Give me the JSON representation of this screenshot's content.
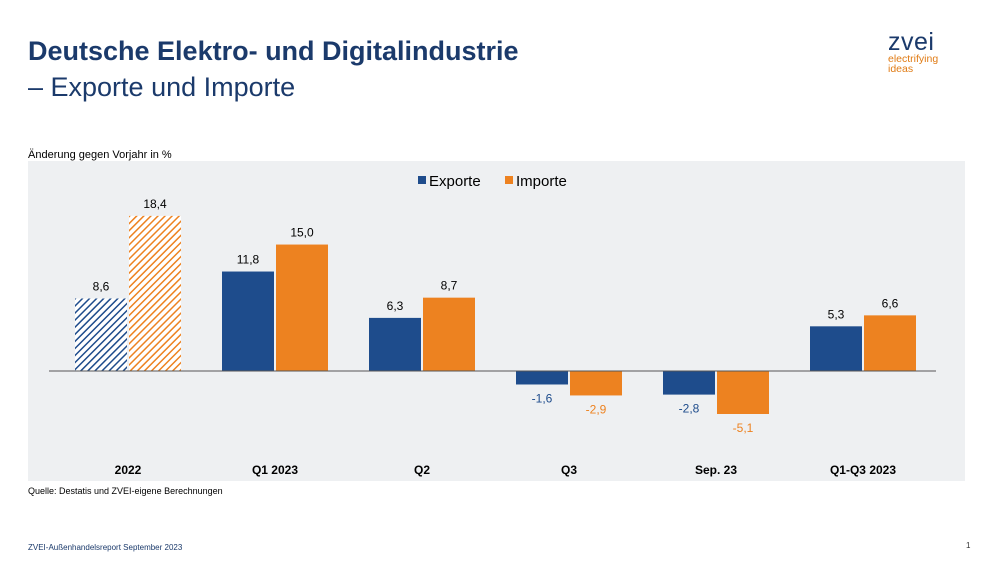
{
  "header": {
    "title_line1": "Deutsche Elektro- und Digitalindustrie",
    "title_line2": "– Exporte und Importe"
  },
  "logo": {
    "word": "zvei",
    "tagline1": "electrifying",
    "tagline2": "ideas"
  },
  "colors": {
    "exporte": "#1e4c8c",
    "importe": "#ed8220",
    "panel": "#eef0f2",
    "title": "#1b3a6b"
  },
  "chart_data": {
    "type": "bar",
    "ylabel": "Änderung gegen Vorjahr in %",
    "categories": [
      "2022",
      "Q1 2023",
      "Q2",
      "Q3",
      "Sep. 23",
      "Q1-Q3 2023"
    ],
    "series": [
      {
        "name": "Exporte",
        "values": [
          8.6,
          11.8,
          6.3,
          -1.6,
          -2.8,
          5.3
        ],
        "labels": [
          "8,6",
          "11,8",
          "6,3",
          "-1,6",
          "-2,8",
          "5,3"
        ]
      },
      {
        "name": "Importe",
        "values": [
          18.4,
          15.0,
          8.7,
          -2.9,
          -5.1,
          6.6
        ],
        "labels": [
          "18,4",
          "15,0",
          "8,7",
          "-2,9",
          "-5,1",
          "6,6"
        ]
      }
    ],
    "hatched_categories": [
      "2022"
    ],
    "ylim": [
      -6,
      20
    ],
    "legend": "top-center",
    "grid": false
  },
  "footer": {
    "source": "Quelle: Destatis und ZVEI-eigene Berechnungen",
    "report": "ZVEI-Außenhandelsreport September 2023",
    "page": "1"
  }
}
